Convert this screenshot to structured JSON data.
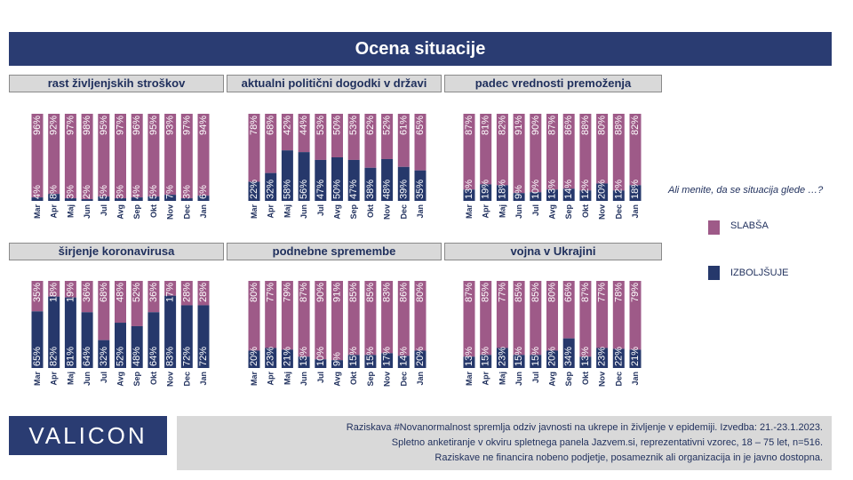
{
  "title": "Ocena situacije",
  "legend": {
    "question": "Ali menite, da se situacija glede …?",
    "items": [
      {
        "label": "SLABŠA",
        "color": "#9e5a88"
      },
      {
        "label": "IZBOLJŠUJE",
        "color": "#26386b"
      }
    ]
  },
  "colors": {
    "slabsa": "#9e5a88",
    "izboljsuje": "#26386b",
    "header_bg": "#d9d9d9",
    "title_bg": "#2a3c72"
  },
  "chart_data": [
    {
      "type": "bar",
      "stacked": true,
      "title": "rast življenjskih stroškov",
      "categories": [
        "Mar",
        "Apr",
        "Maj",
        "Jun",
        "Jul",
        "Avg",
        "Sep",
        "Okt",
        "Nov",
        "Dec",
        "Jan"
      ],
      "series": [
        {
          "name": "IZBOLJŠUJE",
          "values": [
            4,
            8,
            3,
            2,
            5,
            3,
            4,
            5,
            7,
            3,
            6
          ]
        },
        {
          "name": "SLABŠA",
          "values": [
            96,
            92,
            97,
            98,
            95,
            97,
            96,
            95,
            93,
            97,
            94
          ]
        }
      ]
    },
    {
      "type": "bar",
      "stacked": true,
      "title": "aktualni politični dogodki v državi",
      "categories": [
        "Mar",
        "Apr",
        "Maj",
        "Jun",
        "Jul",
        "Avg",
        "Sep",
        "Okt",
        "Nov",
        "Dec",
        "Jan"
      ],
      "series": [
        {
          "name": "IZBOLJŠUJE",
          "values": [
            22,
            32,
            58,
            56,
            47,
            50,
            47,
            38,
            48,
            39,
            35
          ]
        },
        {
          "name": "SLABŠA",
          "values": [
            78,
            68,
            42,
            44,
            53,
            50,
            53,
            62,
            52,
            61,
            65
          ]
        }
      ]
    },
    {
      "type": "bar",
      "stacked": true,
      "title": "padec vrednosti premoženja",
      "categories": [
        "Mar",
        "Apr",
        "Maj",
        "Jun",
        "Jul",
        "Avg",
        "Sep",
        "Okt",
        "Nov",
        "Dec",
        "Jan"
      ],
      "series": [
        {
          "name": "IZBOLJŠUJE",
          "values": [
            13,
            19,
            18,
            9,
            10,
            13,
            14,
            12,
            20,
            12,
            18
          ]
        },
        {
          "name": "SLABŠA",
          "values": [
            87,
            81,
            82,
            91,
            90,
            87,
            86,
            88,
            80,
            88,
            82
          ]
        }
      ]
    },
    {
      "type": "bar",
      "stacked": true,
      "title": "širjenje koronavirusa",
      "categories": [
        "Mar",
        "Apr",
        "Maj",
        "Jun",
        "Jul",
        "Avg",
        "Sep",
        "Okt",
        "Nov",
        "Dec",
        "Jan"
      ],
      "series": [
        {
          "name": "IZBOLJŠUJE",
          "values": [
            65,
            82,
            81,
            64,
            32,
            52,
            48,
            64,
            83,
            72,
            72
          ]
        },
        {
          "name": "SLABŠA",
          "values": [
            35,
            18,
            19,
            36,
            68,
            48,
            52,
            36,
            17,
            28,
            28
          ]
        }
      ]
    },
    {
      "type": "bar",
      "stacked": true,
      "title": "podnebne spremembe",
      "categories": [
        "Mar",
        "Apr",
        "Maj",
        "Jun",
        "Jul",
        "Avg",
        "Okt",
        "Sep",
        "Nov",
        "Dec",
        "Jan"
      ],
      "series": [
        {
          "name": "IZBOLJŠUJE",
          "values": [
            20,
            23,
            21,
            13,
            10,
            9,
            15,
            15,
            17,
            14,
            20
          ]
        },
        {
          "name": "SLABŠA",
          "values": [
            80,
            77,
            79,
            87,
            90,
            91,
            85,
            85,
            83,
            86,
            80
          ]
        }
      ]
    },
    {
      "type": "bar",
      "stacked": true,
      "title": "vojna v Ukrajini",
      "categories": [
        "Mar",
        "Apr",
        "Maj",
        "Jun",
        "Jul",
        "Avg",
        "Sep",
        "Okt",
        "Nov",
        "Dec",
        "Jan"
      ],
      "series": [
        {
          "name": "IZBOLJŠUJE",
          "values": [
            13,
            15,
            23,
            15,
            15,
            20,
            34,
            13,
            23,
            22,
            21
          ]
        },
        {
          "name": "SLABŠA",
          "values": [
            87,
            85,
            77,
            85,
            85,
            80,
            66,
            87,
            77,
            78,
            79
          ]
        }
      ]
    }
  ],
  "logo": "VALICON",
  "footer": {
    "lines": [
      "Raziskava #Novanormalnost spremlja odziv javnosti na ukrepe in življenje v epidemiji. Izvedba: 21.-23.1.2023.",
      "Spletno anketiranje v okviru spletnega panela Jazvem.si, reprezentativni vzorec, 18 – 75 let, n=516.",
      "Raziskave ne financira nobeno podjetje, posameznik ali organizacija in je javno dostopna."
    ]
  }
}
